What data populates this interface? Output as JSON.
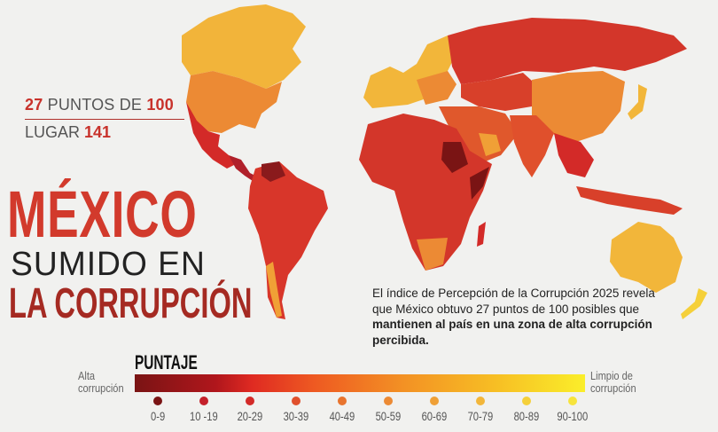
{
  "headline": {
    "score_value": "27",
    "score_text": "PUNTOS DE",
    "score_max": "100",
    "rank_text": "LUGAR",
    "rank_value": "141",
    "title_line1": "MÉXICO",
    "title_line2": "SUMIDO EN",
    "title_line3": "LA CORRUPCIÓN"
  },
  "description": {
    "part1": "El índice de Percepción de la Corrupción 2025 revela que México obtuvo 27 puntos de 100 posibles que ",
    "bold": "mantienen al país en una zona de alta corrupción percibida."
  },
  "legend": {
    "title": "PUNTAJE",
    "left_label": "Alta corrupción",
    "right_label": "Limpio de corrupción",
    "ranges": [
      {
        "label": "0-9",
        "color": "#7a1414"
      },
      {
        "label": "10 -19",
        "color": "#c4202a"
      },
      {
        "label": "20-29",
        "color": "#d32a28"
      },
      {
        "label": "30-39",
        "color": "#e0502c"
      },
      {
        "label": "40-49",
        "color": "#e8742e"
      },
      {
        "label": "50-59",
        "color": "#ec8a34"
      },
      {
        "label": "60-69",
        "color": "#efa036"
      },
      {
        "label": "70-79",
        "color": "#f2b63a"
      },
      {
        "label": "80-89",
        "color": "#f5d03a"
      },
      {
        "label": "90-100",
        "color": "#f7e43c"
      }
    ]
  },
  "map": {
    "type": "choropleth world map",
    "highlighted_country": "México",
    "colors": {
      "background": "#f1f1ef",
      "accent": "#d23a2c"
    }
  }
}
